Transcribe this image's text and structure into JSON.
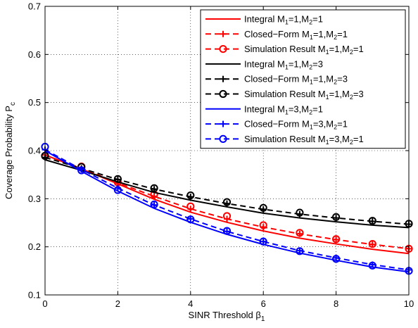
{
  "chart_data": {
    "type": "line",
    "xlabel": "SINR Threshold β",
    "xlabel_sub": "1",
    "ylabel": "Coverage Probability P",
    "ylabel_sub": "c",
    "xlim": [
      0,
      10
    ],
    "ylim": [
      0.1,
      0.7
    ],
    "xticks": [
      0,
      2,
      4,
      6,
      8,
      10
    ],
    "yticks": [
      0.1,
      0.2,
      0.3,
      0.4,
      0.5,
      0.6,
      0.7
    ],
    "grid": true,
    "legend_position": "top-right",
    "x": [
      0,
      1,
      2,
      3,
      4,
      5,
      6,
      7,
      8,
      9,
      10
    ],
    "series": [
      {
        "name": "Integral M1=1,M2=1",
        "color": "#ff0000",
        "style": "solid",
        "marker": "none",
        "values": [
          0.391,
          0.362,
          0.331,
          0.299,
          0.272,
          0.251,
          0.233,
          0.218,
          0.206,
          0.195,
          0.186
        ]
      },
      {
        "name": "Closed−Form M1=1,M2=1",
        "color": "#ff0000",
        "style": "dashed",
        "marker": "plus",
        "values": [
          0.391,
          0.363,
          0.333,
          0.305,
          0.279,
          0.258,
          0.241,
          0.227,
          0.215,
          0.205,
          0.196
        ]
      },
      {
        "name": "Simulation Result M1=1,M2=1",
        "color": "#ff0000",
        "style": "none",
        "marker": "circle",
        "values": [
          0.389,
          0.367,
          0.334,
          0.309,
          0.284,
          0.264,
          0.245,
          0.229,
          0.216,
          0.206,
          0.196
        ]
      },
      {
        "name": "Integral M1=1,M2=3",
        "color": "#000000",
        "style": "solid",
        "marker": "none",
        "values": [
          0.381,
          0.359,
          0.335,
          0.313,
          0.297,
          0.283,
          0.27,
          0.26,
          0.252,
          0.245,
          0.24
        ]
      },
      {
        "name": "Closed−Form M1=1,M2=3",
        "color": "#000000",
        "style": "dashed",
        "marker": "plus",
        "values": [
          0.386,
          0.363,
          0.34,
          0.32,
          0.304,
          0.29,
          0.278,
          0.268,
          0.26,
          0.253,
          0.247
        ]
      },
      {
        "name": "Simulation Result M1=1,M2=3",
        "color": "#000000",
        "style": "none",
        "marker": "circle",
        "values": [
          0.389,
          0.366,
          0.341,
          0.322,
          0.307,
          0.293,
          0.281,
          0.271,
          0.262,
          0.254,
          0.248
        ]
      },
      {
        "name": "Integral M1=3,M2=1",
        "color": "#0000ff",
        "style": "solid",
        "marker": "none",
        "values": [
          0.4,
          0.357,
          0.316,
          0.28,
          0.251,
          0.226,
          0.205,
          0.187,
          0.172,
          0.158,
          0.148
        ]
      },
      {
        "name": "Closed−Form M1=3,M2=1",
        "color": "#0000ff",
        "style": "dashed",
        "marker": "plus",
        "values": [
          0.402,
          0.361,
          0.322,
          0.287,
          0.258,
          0.232,
          0.211,
          0.192,
          0.177,
          0.163,
          0.152
        ]
      },
      {
        "name": "Simulation Result M1=3,M2=1",
        "color": "#0000ff",
        "style": "none",
        "marker": "circle",
        "values": [
          0.408,
          0.359,
          0.318,
          0.288,
          0.257,
          0.233,
          0.211,
          0.191,
          0.175,
          0.161,
          0.15
        ]
      }
    ],
    "legend": [
      {
        "color": "#ff0000",
        "style": "solid",
        "marker": "none",
        "prefix": "Integral M",
        "a": "1",
        "b": "1"
      },
      {
        "color": "#ff0000",
        "style": "dashed",
        "marker": "plus",
        "prefix": "Closed−Form M",
        "a": "1",
        "b": "1"
      },
      {
        "color": "#ff0000",
        "style": "dashed",
        "marker": "circle",
        "prefix": "Simulation Result M",
        "a": "1",
        "b": "1"
      },
      {
        "color": "#000000",
        "style": "solid",
        "marker": "none",
        "prefix": "Integral M",
        "a": "1",
        "b": "3"
      },
      {
        "color": "#000000",
        "style": "dashed",
        "marker": "plus",
        "prefix": "Closed−Form M",
        "a": "1",
        "b": "3"
      },
      {
        "color": "#000000",
        "style": "dashed",
        "marker": "circle",
        "prefix": "Simulation Result M",
        "a": "1",
        "b": "3"
      },
      {
        "color": "#0000ff",
        "style": "solid",
        "marker": "none",
        "prefix": "Integral M",
        "a": "3",
        "b": "1"
      },
      {
        "color": "#0000ff",
        "style": "dashed",
        "marker": "plus",
        "prefix": "Closed−Form M",
        "a": "3",
        "b": "1"
      },
      {
        "color": "#0000ff",
        "style": "dashed",
        "marker": "circle",
        "prefix": "Simulation Result M",
        "a": "3",
        "b": "1"
      }
    ]
  }
}
